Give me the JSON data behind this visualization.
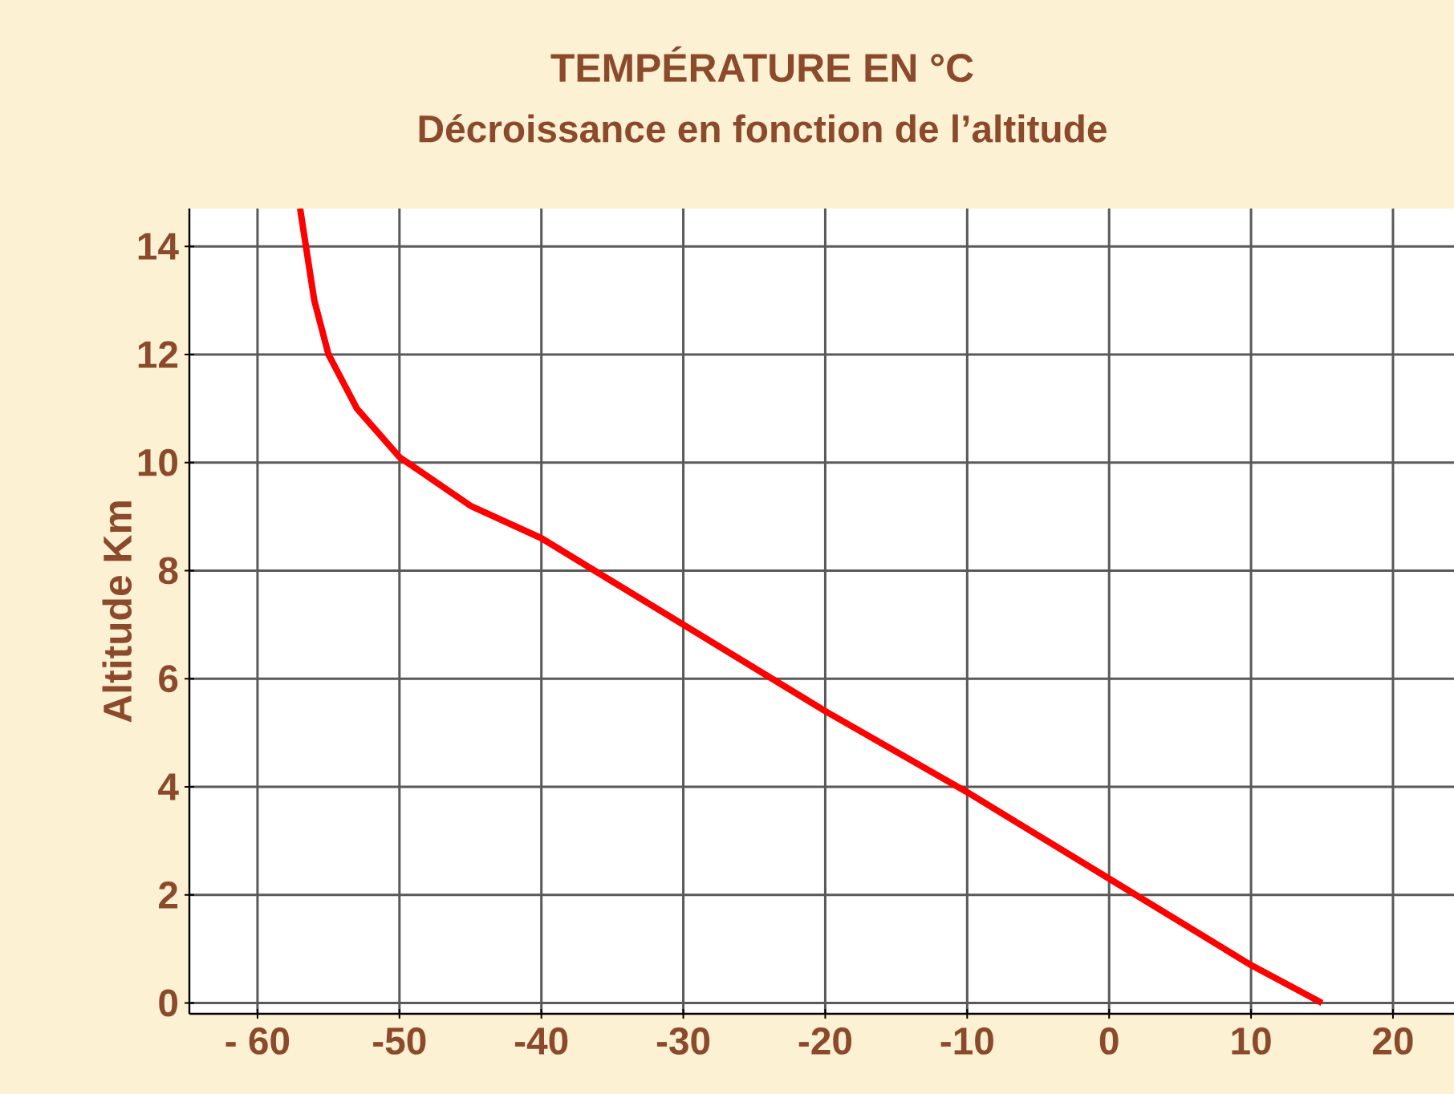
{
  "chart_data": {
    "type": "line",
    "title": "TEMPÉRATURE EN °C",
    "subtitle": "Décroissance en fonction de l’altitude",
    "ylabel": "Altitude Km",
    "xlim": [
      -64.8,
      24.3
    ],
    "ylim": [
      -0.2,
      14.7
    ],
    "xticks": [
      {
        "value": -60,
        "label": "- 60"
      },
      -50,
      -40,
      -30,
      -20,
      -10,
      0,
      10,
      20
    ],
    "yticks": [
      0,
      2,
      4,
      6,
      8,
      10,
      12,
      14
    ],
    "grid": true,
    "series": [
      {
        "color": "#ff0000",
        "x": [
          15,
          10,
          0,
          -10,
          -20,
          -30,
          -40,
          -45,
          -50,
          -53,
          -55,
          -56,
          -57
        ],
        "values": [
          0,
          0.7,
          2.3,
          3.9,
          5.4,
          7.0,
          8.6,
          9.2,
          10.1,
          11,
          12,
          13,
          14.7
        ]
      }
    ]
  }
}
